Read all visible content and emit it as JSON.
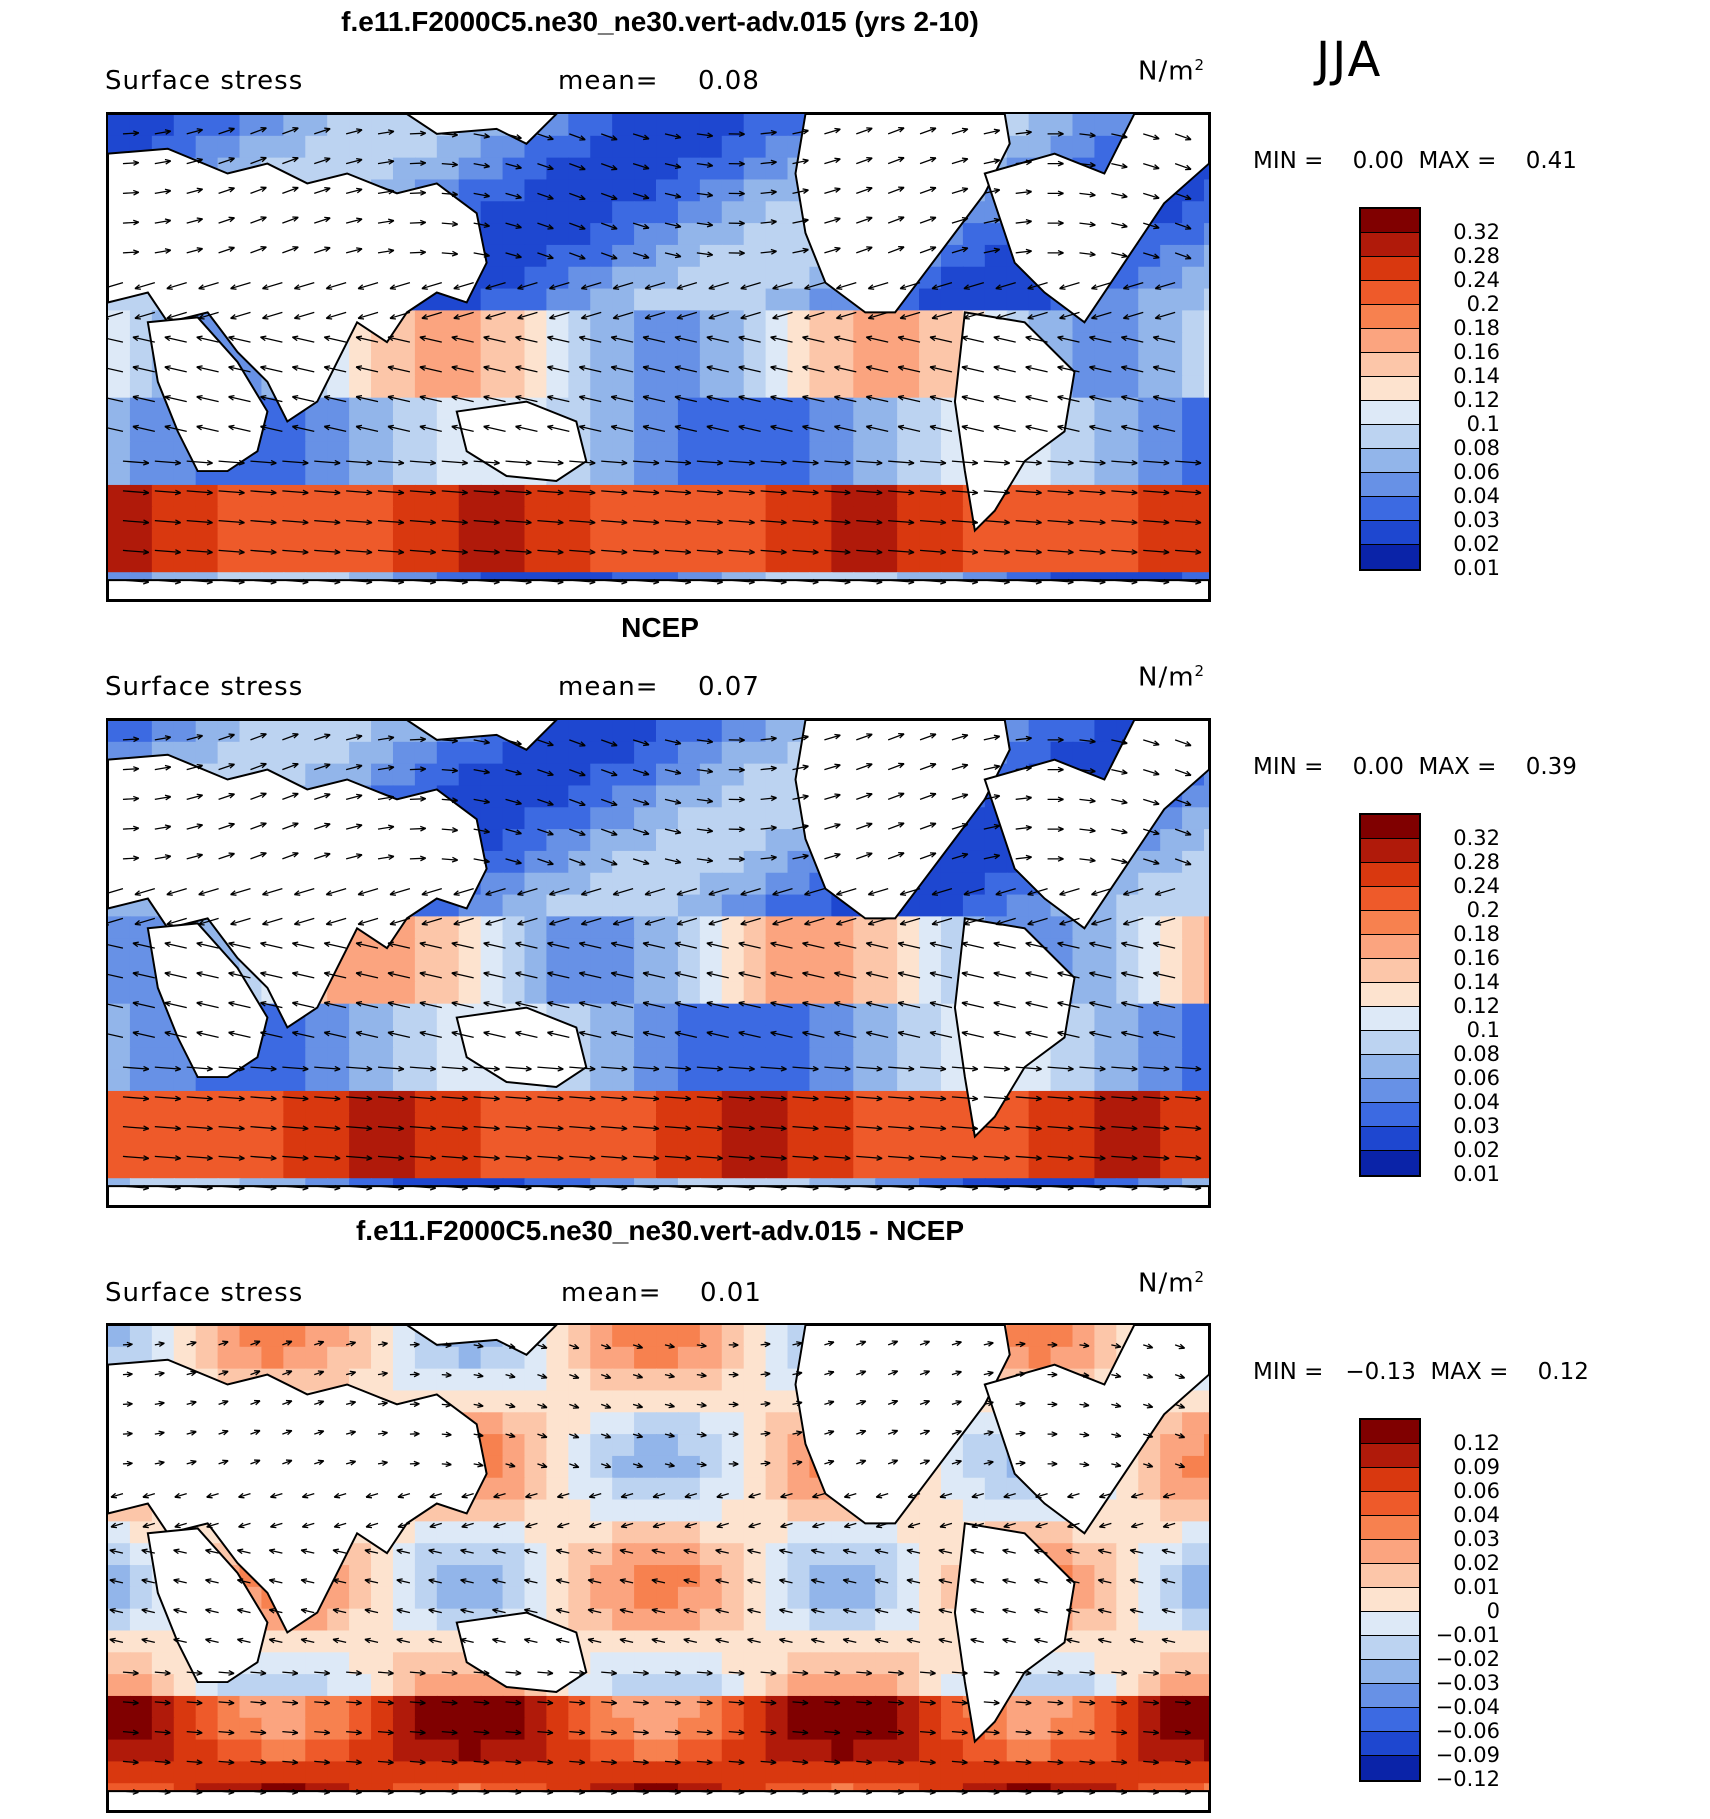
{
  "season": "JJA",
  "panels": [
    {
      "title": "f.e11.F2000C5.ne30_ne30.vert-adv.015 (yrs 2-10)",
      "variable": "Surface stress",
      "mean_label": "mean=",
      "mean_value": "0.08",
      "units_base": "N/m",
      "units_exp": "2",
      "min_label": "MIN =",
      "min_value": "0.00",
      "max_label": "MAX =",
      "max_value": "0.41",
      "kind": "field",
      "colorbar": [
        "0.32",
        "0.28",
        "0.24",
        "0.2",
        "0.18",
        "0.16",
        "0.14",
        "0.12",
        "0.1",
        "0.08",
        "0.06",
        "0.04",
        "0.03",
        "0.02",
        "0.01"
      ]
    },
    {
      "title": "NCEP",
      "variable": "Surface stress",
      "mean_label": "mean=",
      "mean_value": "0.07",
      "units_base": "N/m",
      "units_exp": "2",
      "min_label": "MIN =",
      "min_value": "0.00",
      "max_label": "MAX =",
      "max_value": "0.39",
      "kind": "field",
      "colorbar": [
        "0.32",
        "0.28",
        "0.24",
        "0.2",
        "0.18",
        "0.16",
        "0.14",
        "0.12",
        "0.1",
        "0.08",
        "0.06",
        "0.04",
        "0.03",
        "0.02",
        "0.01"
      ]
    },
    {
      "title": "f.e11.F2000C5.ne30_ne30.vert-adv.015 - NCEP",
      "variable": "Surface stress",
      "mean_label": "mean=",
      "mean_value": "0.01",
      "units_base": "N/m",
      "units_exp": "2",
      "min_label": "MIN =",
      "min_value": "−0.13",
      "max_label": "MAX =",
      "max_value": "0.12",
      "kind": "diff",
      "colorbar": [
        "0.12",
        "0.09",
        "0.06",
        "0.04",
        "0.03",
        "0.02",
        "0.01",
        "0",
        "−0.01",
        "−0.02",
        "−0.03",
        "−0.04",
        "−0.06",
        "−0.09",
        "−0.12"
      ]
    }
  ],
  "colors": {
    "field_scale": [
      "#800000",
      "#b01a0a",
      "#d9380f",
      "#ee5a2a",
      "#f7814f",
      "#fba47f",
      "#fcc6a9",
      "#fde3cf",
      "#dde9f7",
      "#bcd3f1",
      "#92b5ea",
      "#6791e6",
      "#3c6ae2",
      "#1e47d0",
      "#0a23a8"
    ],
    "diff_scale": [
      "#800000",
      "#b01a0a",
      "#d9380f",
      "#ee5a2a",
      "#f7814f",
      "#fba47f",
      "#fcc6a9",
      "#fde3cf",
      "#dde9f7",
      "#bcd3f1",
      "#92b5ea",
      "#6791e6",
      "#3c6ae2",
      "#1e47d0",
      "#0a23a8"
    ],
    "land": "#ffffff",
    "coast": "#000000"
  }
}
